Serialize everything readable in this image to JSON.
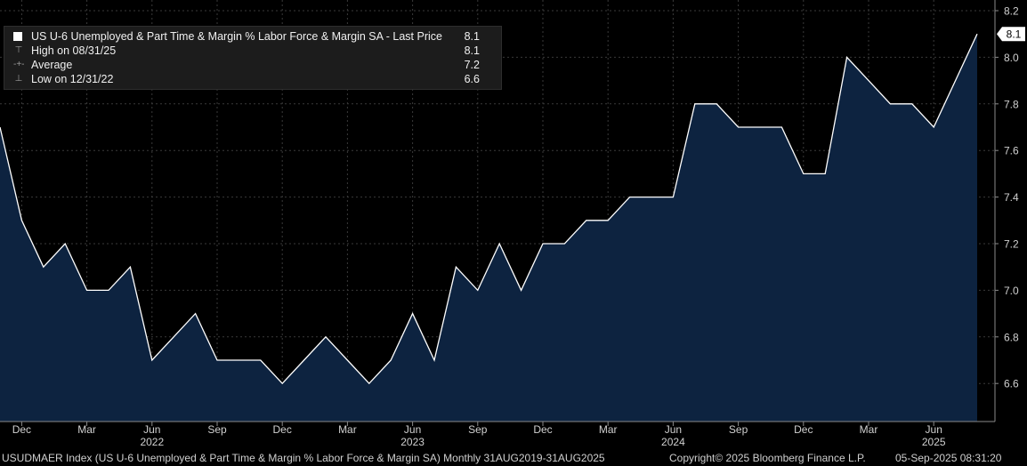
{
  "chart_data": {
    "type": "area",
    "title": "US U-6 Unemployed & Part Time & Margin % Labor Force & Margin SA - Last Price",
    "x": [
      "2021-11",
      "2021-12",
      "2022-01",
      "2022-02",
      "2022-03",
      "2022-04",
      "2022-05",
      "2022-06",
      "2022-07",
      "2022-08",
      "2022-09",
      "2022-10",
      "2022-11",
      "2022-12",
      "2023-01",
      "2023-02",
      "2023-03",
      "2023-04",
      "2023-05",
      "2023-06",
      "2023-07",
      "2023-08",
      "2023-09",
      "2023-10",
      "2023-11",
      "2023-12",
      "2024-01",
      "2024-02",
      "2024-03",
      "2024-04",
      "2024-05",
      "2024-06",
      "2024-07",
      "2024-08",
      "2024-09",
      "2024-10",
      "2024-11",
      "2024-12",
      "2025-01",
      "2025-02",
      "2025-03",
      "2025-04",
      "2025-05",
      "2025-06",
      "2025-07",
      "2025-08"
    ],
    "series": [
      {
        "name": "US U-6 Unemployed & Part Time & Margin % Labor Force & Margin SA - Last Price",
        "values": [
          7.7,
          7.3,
          7.1,
          7.2,
          7.0,
          7.0,
          7.1,
          6.7,
          6.8,
          6.9,
          6.7,
          6.7,
          6.7,
          6.6,
          6.7,
          6.8,
          6.7,
          6.6,
          6.7,
          6.9,
          6.7,
          7.1,
          7.0,
          7.2,
          7.0,
          7.2,
          7.2,
          7.3,
          7.3,
          7.4,
          7.4,
          7.4,
          7.8,
          7.8,
          7.7,
          7.7,
          7.7,
          7.5,
          7.5,
          8.0,
          7.9,
          7.8,
          7.8,
          7.7,
          7.9,
          8.1
        ]
      }
    ],
    "ylim": [
      6.45,
      8.25
    ],
    "y_ticks": [
      "6.6",
      "6.8",
      "7.0",
      "7.2",
      "7.4",
      "7.6",
      "7.8",
      "8.0",
      "8.2"
    ],
    "x_ticks": [
      {
        "label": "Dec",
        "year": ""
      },
      {
        "label": "Mar",
        "year": ""
      },
      {
        "label": "Jun",
        "year": "2022"
      },
      {
        "label": "Sep",
        "year": ""
      },
      {
        "label": "Dec",
        "year": ""
      },
      {
        "label": "Mar",
        "year": ""
      },
      {
        "label": "Jun",
        "year": "2023"
      },
      {
        "label": "Sep",
        "year": ""
      },
      {
        "label": "Dec",
        "year": ""
      },
      {
        "label": "Mar",
        "year": ""
      },
      {
        "label": "Jun",
        "year": "2024"
      },
      {
        "label": "Sep",
        "year": ""
      },
      {
        "label": "Dec",
        "year": ""
      },
      {
        "label": "Mar",
        "year": ""
      },
      {
        "label": "Jun",
        "year": "2025"
      }
    ],
    "last_price_label": "8.1",
    "grid": true,
    "legend_position": "top-left",
    "colors": {
      "line": "#ffffff",
      "fill": "#0d2340",
      "grid": "#3a3a3a",
      "axis_text": "#d0d0d0",
      "last_tag_bg": "#ffffff",
      "last_tag_text": "#000000"
    }
  },
  "legend": {
    "rows": [
      {
        "label": "US U-6 Unemployed & Part Time & Margin % Labor Force & Margin SA - Last Price",
        "value": "8.1",
        "icon": "white-square-icon"
      },
      {
        "label": "High on 08/31/25",
        "value": "8.1",
        "icon": "high-marker-icon"
      },
      {
        "label": "Average",
        "value": "7.2",
        "icon": "average-marker-icon"
      },
      {
        "label": "Low on 12/31/22",
        "value": "6.6",
        "icon": "low-marker-icon"
      }
    ]
  },
  "footer": {
    "index_text": "USUDMAER Index (US U-6 Unemployed & Part Time & Margin % Labor Force & Margin SA)  Monthly 31AUG2019-31AUG2025",
    "copyright": "Copyright© 2025 Bloomberg Finance L.P.",
    "timestamp": "05-Sep-2025 08:31:20"
  }
}
